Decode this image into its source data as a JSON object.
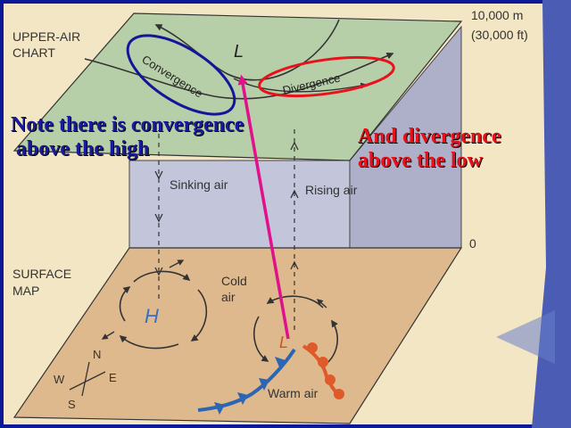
{
  "diagram": {
    "upper_label_line1": "UPPER-AIR",
    "upper_label_line2": "CHART",
    "surface_label_line1": "SURFACE",
    "surface_label_line2": "MAP",
    "height_top_m": "10,000 m",
    "height_top_ft": "(30,000 ft)",
    "height_bottom": "0",
    "upper_low": "L",
    "convergence": "Convergence",
    "divergence": "Divergence",
    "sinking_air": "Sinking air",
    "rising_air": "Rising air",
    "surface_high": "H",
    "surface_low": "L",
    "cold_air_line1": "Cold",
    "cold_air_line2": "air",
    "warm_air": "Warm air",
    "compass": {
      "n": "N",
      "s": "S",
      "e": "E",
      "w": "W"
    }
  },
  "annotations": {
    "left_line1": "Note there is convergence",
    "left_line2": " above the high",
    "right_line1": "And divergence",
    "right_line2": "above the low"
  },
  "colors": {
    "upper_plane": "#b7cfa8",
    "middle_box": "#c3c5da",
    "surface_plane": "#deb98d",
    "page_background": "#f3e6c4",
    "frame": "#0c1a9a",
    "left_note": "#1a1a9c",
    "right_note": "#e8111c",
    "arrow": "#e0118a",
    "cold_front": "#2c66b3",
    "warm_front": "#df5a2a",
    "high_letter": "#3a6fc0",
    "surface_low_letter": "#d0522a"
  }
}
